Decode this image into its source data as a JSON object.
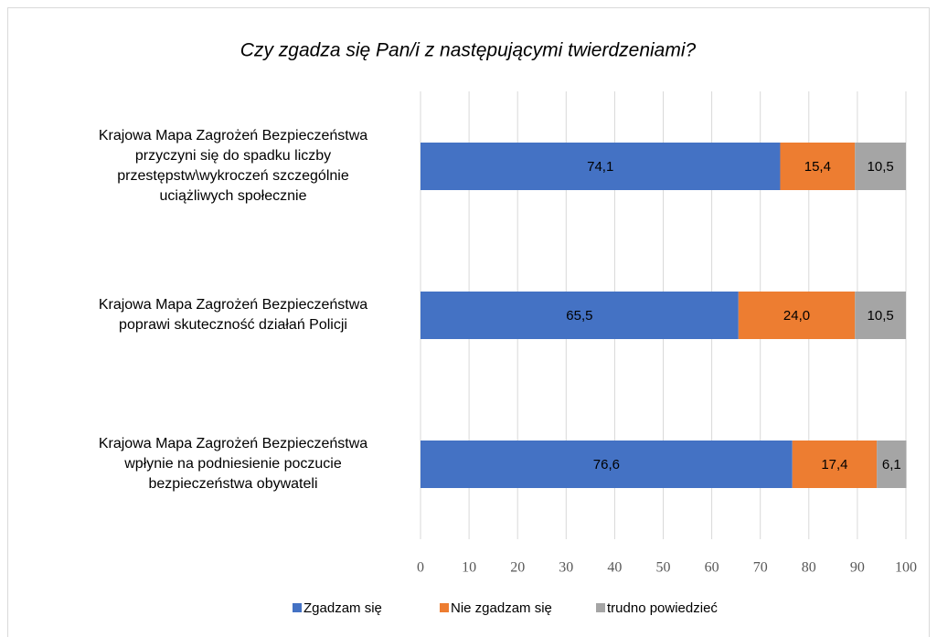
{
  "chart_data": {
    "type": "stacked-barh",
    "title": "Czy zgadza się Pan/i z następującymi twierdzeniami?",
    "categories": [
      "Krajowa Mapa Zagrożeń Bezpieczeństwa\nprzyczyni się do spadku liczby\nprzestępstw\\wykroczeń szczególnie\nuciążliwych społecznie",
      "Krajowa Mapa Zagrożeń Bezpieczeństwa\npoprawi skuteczność działań Policji",
      "Krajowa Mapa Zagrożeń Bezpieczeństwa\nwpłynie na podniesienie poczucie\nbezpieczeństwa obywateli"
    ],
    "series": [
      {
        "name": "Zgadzam się",
        "color": "#4472c4",
        "values": [
          74.1,
          65.5,
          76.6
        ],
        "value_labels": [
          "74,1",
          "65,5",
          "76,6"
        ]
      },
      {
        "name": "Nie zgadzam się",
        "color": "#ed7d31",
        "values": [
          15.4,
          24.0,
          17.4
        ],
        "value_labels": [
          "15,4",
          "24,0",
          "17,4"
        ]
      },
      {
        "name": "trudno powiedzieć",
        "color": "#a5a5a5",
        "values": [
          10.5,
          10.5,
          6.1
        ],
        "value_labels": [
          "10,5",
          "10,5",
          "6,1"
        ]
      }
    ],
    "xlim": [
      0,
      100
    ],
    "xticks": [
      0,
      10,
      20,
      30,
      40,
      50,
      60,
      70,
      80,
      90,
      100
    ],
    "grid": true,
    "legend": "bottom"
  }
}
